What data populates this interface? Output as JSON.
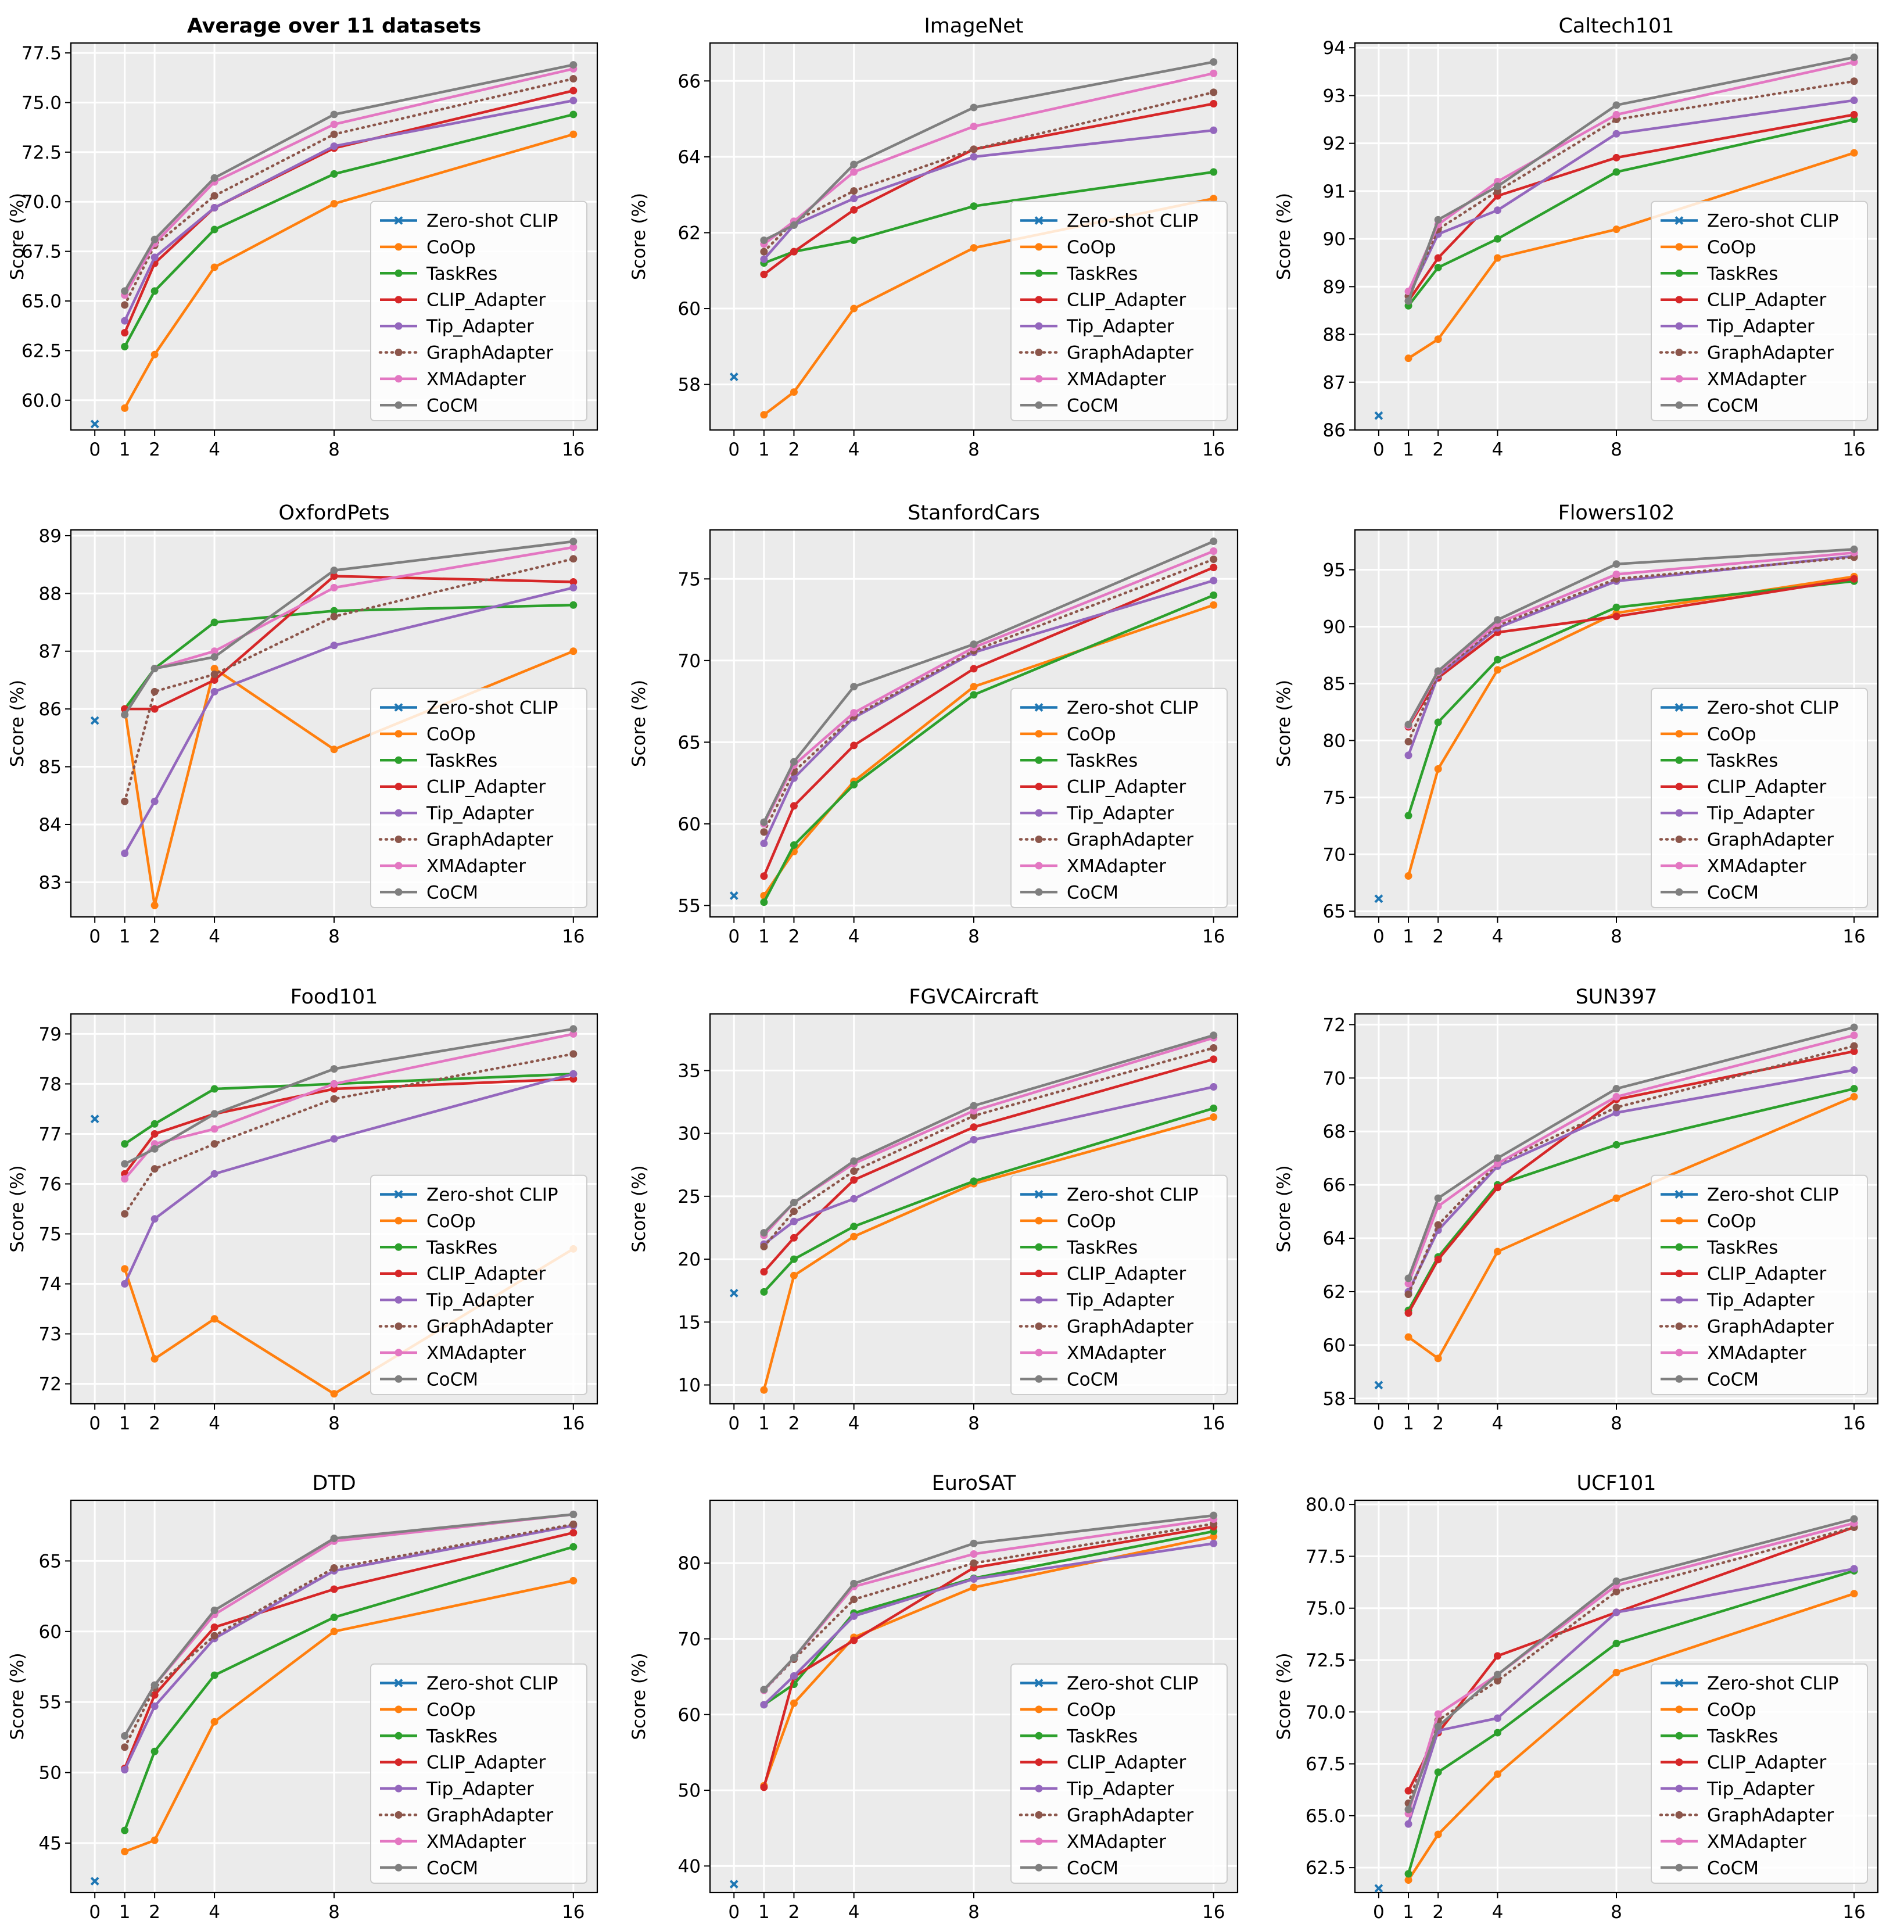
{
  "chart_data": {
    "type": "line",
    "x": [
      1,
      2,
      4,
      8,
      16
    ],
    "x_ticks": [
      0,
      1,
      2,
      4,
      8,
      16
    ],
    "ylabel": "Score (%)",
    "grid": true,
    "legend": "lower-right",
    "series_styles": [
      {
        "name": "Zero-shot CLIP",
        "color": "#1f77b4",
        "style": "solid",
        "marker": "x"
      },
      {
        "name": "CoOp",
        "color": "#ff7f0e",
        "style": "solid",
        "marker": "o"
      },
      {
        "name": "TaskRes",
        "color": "#2ca02c",
        "style": "solid",
        "marker": "o"
      },
      {
        "name": "CLIP_Adapter",
        "color": "#d62728",
        "style": "solid",
        "marker": "o"
      },
      {
        "name": "Tip_Adapter",
        "color": "#9467bd",
        "style": "solid",
        "marker": "o"
      },
      {
        "name": "GraphAdapter",
        "color": "#8c564b",
        "style": "dotted",
        "marker": "o"
      },
      {
        "name": "XMAdapter",
        "color": "#e377c2",
        "style": "solid",
        "marker": "o"
      },
      {
        "name": "CoCM",
        "color": "#7f7f7f",
        "style": "solid",
        "marker": "o"
      }
    ],
    "panels": [
      {
        "title": "Average over 11 datasets",
        "bold": true,
        "ylim": [
          58.5,
          78
        ],
        "yticks": [
          60.0,
          62.5,
          65.0,
          67.5,
          70.0,
          72.5,
          75.0,
          77.5
        ],
        "tick_labels": [
          "60.0",
          "62.5",
          "65.0",
          "67.5",
          "70.0",
          "72.5",
          "75.0",
          "77.5"
        ],
        "zero_shot": 58.8,
        "series": [
          [
            59.6,
            62.3,
            66.7,
            69.9,
            73.4
          ],
          [
            62.7,
            65.5,
            68.6,
            71.4,
            74.4
          ],
          [
            63.4,
            66.9,
            69.7,
            72.7,
            75.6
          ],
          [
            64.0,
            67.2,
            69.7,
            72.8,
            75.1
          ],
          [
            64.8,
            67.8,
            70.3,
            73.4,
            76.2
          ],
          [
            65.3,
            67.9,
            71.0,
            73.9,
            76.7
          ],
          [
            65.5,
            68.1,
            71.2,
            74.4,
            76.9
          ]
        ]
      },
      {
        "title": "ImageNet",
        "bold": false,
        "ylim": [
          56.8,
          67
        ],
        "yticks": [
          58,
          60,
          62,
          64,
          66
        ],
        "tick_labels": [
          "58",
          "60",
          "62",
          "64",
          "66"
        ],
        "zero_shot": 58.2,
        "series": [
          [
            57.2,
            57.8,
            60.0,
            61.6,
            62.9
          ],
          [
            61.2,
            61.5,
            61.8,
            62.7,
            63.6
          ],
          [
            60.9,
            61.5,
            62.6,
            64.2,
            65.4
          ],
          [
            61.3,
            62.2,
            62.9,
            64.0,
            64.7
          ],
          [
            61.5,
            62.3,
            63.1,
            64.2,
            65.7
          ],
          [
            61.7,
            62.3,
            63.6,
            64.8,
            66.2
          ],
          [
            61.8,
            62.2,
            63.8,
            65.3,
            66.5
          ]
        ]
      },
      {
        "title": "Caltech101",
        "bold": false,
        "ylim": [
          86.0,
          94.1
        ],
        "yticks": [
          86,
          87,
          88,
          89,
          90,
          91,
          92,
          93,
          94
        ],
        "tick_labels": [
          "86",
          "87",
          "88",
          "89",
          "90",
          "91",
          "92",
          "93",
          "94"
        ],
        "zero_shot": 86.3,
        "series": [
          [
            87.5,
            87.9,
            89.6,
            90.2,
            91.8
          ],
          [
            88.6,
            89.4,
            90.0,
            91.4,
            92.5
          ],
          [
            88.7,
            89.6,
            90.9,
            91.7,
            92.6
          ],
          [
            88.8,
            90.1,
            90.6,
            92.2,
            92.9
          ],
          [
            88.8,
            90.2,
            91.0,
            92.5,
            93.3
          ],
          [
            88.9,
            90.3,
            91.2,
            92.6,
            93.7
          ],
          [
            88.7,
            90.4,
            91.1,
            92.8,
            93.8
          ]
        ]
      },
      {
        "title": "OxfordPets",
        "bold": false,
        "ylim": [
          82.4,
          89.1
        ],
        "yticks": [
          83,
          84,
          85,
          86,
          87,
          88,
          89
        ],
        "tick_labels": [
          "83",
          "84",
          "85",
          "86",
          "87",
          "88",
          "89"
        ],
        "zero_shot": 85.8,
        "series": [
          [
            86.0,
            82.6,
            86.7,
            85.3,
            87.0
          ],
          [
            86.0,
            86.7,
            87.5,
            87.7,
            87.8
          ],
          [
            86.0,
            86.0,
            86.5,
            88.3,
            88.2
          ],
          [
            83.5,
            84.4,
            86.3,
            87.1,
            88.1
          ],
          [
            84.4,
            86.3,
            86.6,
            87.6,
            88.6
          ],
          [
            85.9,
            86.7,
            87.0,
            88.1,
            88.8
          ],
          [
            85.9,
            86.7,
            86.9,
            88.4,
            88.9
          ]
        ]
      },
      {
        "title": "StanfordCars",
        "bold": false,
        "ylim": [
          54.3,
          78.0
        ],
        "yticks": [
          55,
          60,
          65,
          70,
          75
        ],
        "tick_labels": [
          "55",
          "60",
          "65",
          "70",
          "75"
        ],
        "zero_shot": 55.6,
        "series": [
          [
            55.6,
            58.3,
            62.6,
            68.4,
            73.4
          ],
          [
            55.2,
            58.7,
            62.4,
            67.9,
            74.0
          ],
          [
            56.8,
            61.1,
            64.8,
            69.5,
            75.7
          ],
          [
            58.8,
            62.8,
            66.5,
            70.5,
            74.9
          ],
          [
            59.5,
            63.2,
            66.6,
            70.6,
            76.2
          ],
          [
            60.0,
            63.6,
            66.8,
            70.8,
            76.7
          ],
          [
            60.1,
            63.8,
            68.4,
            71.0,
            77.3
          ]
        ]
      },
      {
        "title": "Flowers102",
        "bold": false,
        "ylim": [
          64.5,
          98.5
        ],
        "yticks": [
          65,
          70,
          75,
          80,
          85,
          90,
          95
        ],
        "tick_labels": [
          "65",
          "70",
          "75",
          "80",
          "85",
          "90",
          "95"
        ],
        "zero_shot": 66.1,
        "series": [
          [
            68.1,
            77.5,
            86.2,
            91.2,
            94.4
          ],
          [
            73.4,
            81.6,
            87.1,
            91.7,
            94.0
          ],
          [
            81.2,
            85.5,
            89.5,
            90.9,
            94.2
          ],
          [
            78.7,
            85.7,
            89.9,
            94.0,
            96.2
          ],
          [
            79.9,
            85.8,
            90.1,
            94.2,
            96.1
          ],
          [
            81.3,
            86.0,
            90.3,
            94.6,
            96.5
          ],
          [
            81.4,
            86.1,
            90.6,
            95.5,
            96.8
          ]
        ]
      },
      {
        "title": "Food101",
        "bold": false,
        "ylim": [
          71.6,
          79.4
        ],
        "yticks": [
          72,
          73,
          74,
          75,
          76,
          77,
          78,
          79
        ],
        "tick_labels": [
          "72",
          "73",
          "74",
          "75",
          "76",
          "77",
          "78",
          "79"
        ],
        "zero_shot": 77.3,
        "series": [
          [
            74.3,
            72.5,
            73.3,
            71.8,
            74.7
          ],
          [
            76.8,
            77.2,
            77.9,
            78.0,
            78.2
          ],
          [
            76.2,
            77.0,
            77.4,
            77.9,
            78.1
          ],
          [
            74.0,
            75.3,
            76.2,
            76.9,
            78.2
          ],
          [
            75.4,
            76.3,
            76.8,
            77.7,
            78.6
          ],
          [
            76.1,
            76.8,
            77.1,
            78.0,
            79.0
          ],
          [
            76.4,
            76.7,
            77.4,
            78.3,
            79.1
          ]
        ]
      },
      {
        "title": "FGVCAircraft",
        "bold": false,
        "ylim": [
          8.5,
          39.5
        ],
        "yticks": [
          10,
          15,
          20,
          25,
          30,
          35
        ],
        "tick_labels": [
          "10",
          "15",
          "20",
          "25",
          "30",
          "35"
        ],
        "zero_shot": 17.3,
        "series": [
          [
            9.6,
            18.7,
            21.8,
            26.0,
            31.3
          ],
          [
            17.4,
            20.0,
            22.6,
            26.2,
            32.0
          ],
          [
            19.0,
            21.7,
            26.3,
            30.5,
            35.9
          ],
          [
            21.2,
            23.0,
            24.8,
            29.5,
            33.7
          ],
          [
            21.0,
            23.8,
            27.0,
            31.4,
            36.8
          ],
          [
            21.9,
            24.5,
            27.6,
            31.8,
            37.6
          ],
          [
            22.1,
            24.5,
            27.8,
            32.2,
            37.8
          ]
        ]
      },
      {
        "title": "SUN397",
        "bold": false,
        "ylim": [
          57.8,
          72.4
        ],
        "yticks": [
          58,
          60,
          62,
          64,
          66,
          68,
          70,
          72
        ],
        "tick_labels": [
          "58",
          "60",
          "62",
          "64",
          "66",
          "68",
          "70",
          "72"
        ],
        "zero_shot": 58.5,
        "series": [
          [
            60.3,
            59.5,
            63.5,
            65.5,
            69.3
          ],
          [
            61.3,
            63.3,
            66.0,
            67.5,
            69.6
          ],
          [
            61.2,
            63.2,
            65.9,
            69.2,
            71.0
          ],
          [
            62.0,
            64.3,
            66.7,
            68.7,
            70.3
          ],
          [
            61.9,
            64.5,
            66.8,
            68.9,
            71.2
          ],
          [
            62.3,
            65.2,
            66.8,
            69.3,
            71.6
          ],
          [
            62.5,
            65.5,
            67.0,
            69.6,
            71.9
          ]
        ]
      },
      {
        "title": "DTD",
        "bold": false,
        "ylim": [
          41.5,
          69.3
        ],
        "yticks": [
          45,
          50,
          55,
          60,
          65
        ],
        "tick_labels": [
          "45",
          "50",
          "55",
          "60",
          "65"
        ],
        "zero_shot": 42.3,
        "series": [
          [
            44.4,
            45.2,
            53.6,
            60.0,
            63.6
          ],
          [
            45.9,
            51.5,
            56.9,
            61.0,
            66.0
          ],
          [
            50.3,
            55.5,
            60.3,
            63.0,
            67.0
          ],
          [
            50.2,
            54.7,
            59.5,
            64.3,
            67.5
          ],
          [
            51.8,
            56.0,
            59.7,
            64.5,
            67.6
          ],
          [
            52.6,
            56.2,
            61.2,
            66.4,
            68.3
          ],
          [
            52.6,
            56.2,
            61.5,
            66.6,
            68.3
          ]
        ]
      },
      {
        "title": "EuroSAT",
        "bold": false,
        "ylim": [
          36.5,
          88.3
        ],
        "yticks": [
          40,
          50,
          60,
          70,
          80
        ],
        "tick_labels": [
          "40",
          "50",
          "60",
          "70",
          "80"
        ],
        "zero_shot": 37.6,
        "series": [
          [
            50.6,
            61.5,
            70.2,
            76.8,
            83.5
          ],
          [
            61.3,
            64.0,
            73.4,
            78.0,
            84.2
          ],
          [
            50.4,
            65.0,
            69.8,
            79.4,
            84.8
          ],
          [
            61.3,
            65.1,
            73.0,
            77.9,
            82.6
          ],
          [
            63.2,
            67.3,
            75.2,
            80.0,
            85.2
          ],
          [
            63.2,
            67.5,
            76.9,
            81.2,
            85.8
          ],
          [
            63.3,
            67.5,
            77.3,
            82.6,
            86.3
          ]
        ]
      },
      {
        "title": "UCF101",
        "bold": false,
        "ylim": [
          61.3,
          80.2
        ],
        "yticks": [
          62.5,
          65.0,
          67.5,
          70.0,
          72.5,
          75.0,
          77.5,
          80.0
        ],
        "tick_labels": [
          "62.5",
          "65.0",
          "67.5",
          "70.0",
          "72.5",
          "75.0",
          "77.5",
          "80.0"
        ],
        "zero_shot": 61.5,
        "series": [
          [
            61.9,
            64.1,
            67.0,
            71.9,
            75.7
          ],
          [
            62.2,
            67.1,
            69.0,
            73.3,
            76.8
          ],
          [
            66.2,
            69.0,
            72.7,
            74.8,
            78.9
          ],
          [
            64.6,
            69.1,
            69.7,
            74.8,
            76.9
          ],
          [
            65.6,
            69.6,
            71.5,
            75.8,
            78.9
          ],
          [
            65.1,
            69.9,
            71.8,
            76.1,
            79.1
          ],
          [
            65.3,
            69.3,
            71.8,
            76.3,
            79.3
          ]
        ]
      }
    ]
  }
}
